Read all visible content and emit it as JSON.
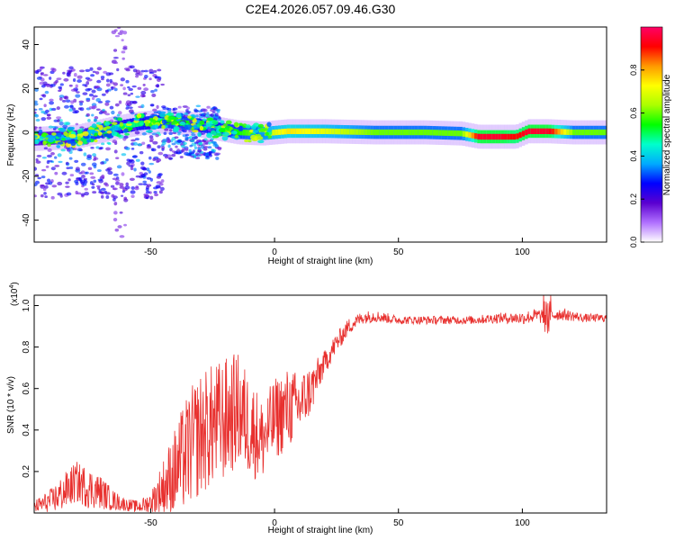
{
  "title": "C2E4.2026.057.09.46.G30",
  "chart_data": [
    {
      "type": "heatmap",
      "xlabel": "Height of straight line (km)",
      "ylabel": "Frequency (Hz)",
      "xlim": [
        -97,
        134
      ],
      "ylim": [
        -50,
        48
      ],
      "x_ticks": [
        -50,
        0,
        50,
        100
      ],
      "x_tick_labels": [
        "-50",
        "0",
        "50",
        "100"
      ],
      "y_ticks": [
        -40,
        -20,
        0,
        20,
        40
      ],
      "y_tick_labels": [
        "-40",
        "-20",
        "0",
        "20",
        "40"
      ],
      "colorbar": {
        "label": "Normalized spectral amplitude",
        "range": [
          0,
          1
        ],
        "ticks": [
          0.0,
          0.2,
          0.4,
          0.6,
          0.8
        ],
        "tick_labels": [
          "0.0",
          "0.2",
          "0.4",
          "0.6",
          "0.8"
        ],
        "colors": [
          "#ffffff",
          "#b070ff",
          "#5a00d0",
          "#0000ff",
          "#00aaff",
          "#00ffcc",
          "#00ff00",
          "#aaff00",
          "#ffff00",
          "#ff9900",
          "#ff0000",
          "#ff0066"
        ]
      },
      "ridge": {
        "x": [
          -97,
          -80,
          -65,
          -55,
          -45,
          -35,
          -25,
          -15,
          -5,
          5,
          20,
          40,
          60,
          75,
          82,
          90,
          97,
          102,
          110,
          120,
          134
        ],
        "center_hz": [
          -3,
          -2,
          2,
          4,
          5,
          4,
          2,
          0,
          -0.5,
          0.5,
          0.5,
          0,
          0,
          -0.5,
          -2,
          -2,
          -2,
          0.5,
          0.5,
          0,
          0
        ],
        "amplitude": [
          0.35,
          0.4,
          0.45,
          0.5,
          0.55,
          0.55,
          0.5,
          0.55,
          0.65,
          0.75,
          0.7,
          0.6,
          0.6,
          0.6,
          0.95,
          0.95,
          0.9,
          0.95,
          0.95,
          0.6,
          0.6
        ]
      },
      "grid": false
    },
    {
      "type": "line",
      "xlabel": "Height of straight line (km)",
      "ylabel": "SNR (10 * v/v)",
      "y_multiplier_label": "(x10",
      "y_multiplier_exp": "4",
      "xlim": [
        -97,
        134
      ],
      "ylim": [
        0,
        1.05
      ],
      "x_ticks": [
        -50,
        0,
        50,
        100
      ],
      "x_tick_labels": [
        "-50",
        "0",
        "50",
        "100"
      ],
      "y_ticks": [
        0.2,
        0.4,
        0.6,
        0.8,
        1.0
      ],
      "y_tick_labels": [
        "0.2",
        "0.4",
        "0.6",
        "0.8",
        "1.0"
      ],
      "color": "#e8302e",
      "series": [
        {
          "x": [
            -97,
            -90,
            -85,
            -80,
            -75,
            -70,
            -65,
            -60,
            -55,
            -50,
            -45,
            -40,
            -35,
            -30,
            -25,
            -20,
            -15,
            -10,
            -5,
            0,
            5,
            10,
            15,
            20,
            25,
            30,
            35,
            40,
            50,
            60,
            70,
            80,
            90,
            100,
            105,
            110,
            115,
            120,
            125,
            134
          ],
          "values": [
            0.03,
            0.06,
            0.1,
            0.15,
            0.12,
            0.1,
            0.06,
            0.04,
            0.03,
            0.05,
            0.12,
            0.2,
            0.3,
            0.38,
            0.42,
            0.45,
            0.5,
            0.42,
            0.35,
            0.45,
            0.5,
            0.52,
            0.6,
            0.72,
            0.82,
            0.9,
            0.94,
            0.95,
            0.93,
            0.93,
            0.93,
            0.93,
            0.94,
            0.94,
            0.95,
            0.95,
            0.96,
            0.95,
            0.94,
            0.94
          ],
          "noise": [
            0.03,
            0.06,
            0.09,
            0.1,
            0.1,
            0.08,
            0.05,
            0.03,
            0.03,
            0.05,
            0.14,
            0.22,
            0.28,
            0.3,
            0.3,
            0.3,
            0.28,
            0.25,
            0.2,
            0.2,
            0.2,
            0.16,
            0.12,
            0.06,
            0.05,
            0.04,
            0.03,
            0.03,
            0.02,
            0.02,
            0.02,
            0.02,
            0.025,
            0.03,
            0.035,
            0.04,
            0.03,
            0.025,
            0.02,
            0.02
          ]
        }
      ],
      "grid": false
    }
  ]
}
